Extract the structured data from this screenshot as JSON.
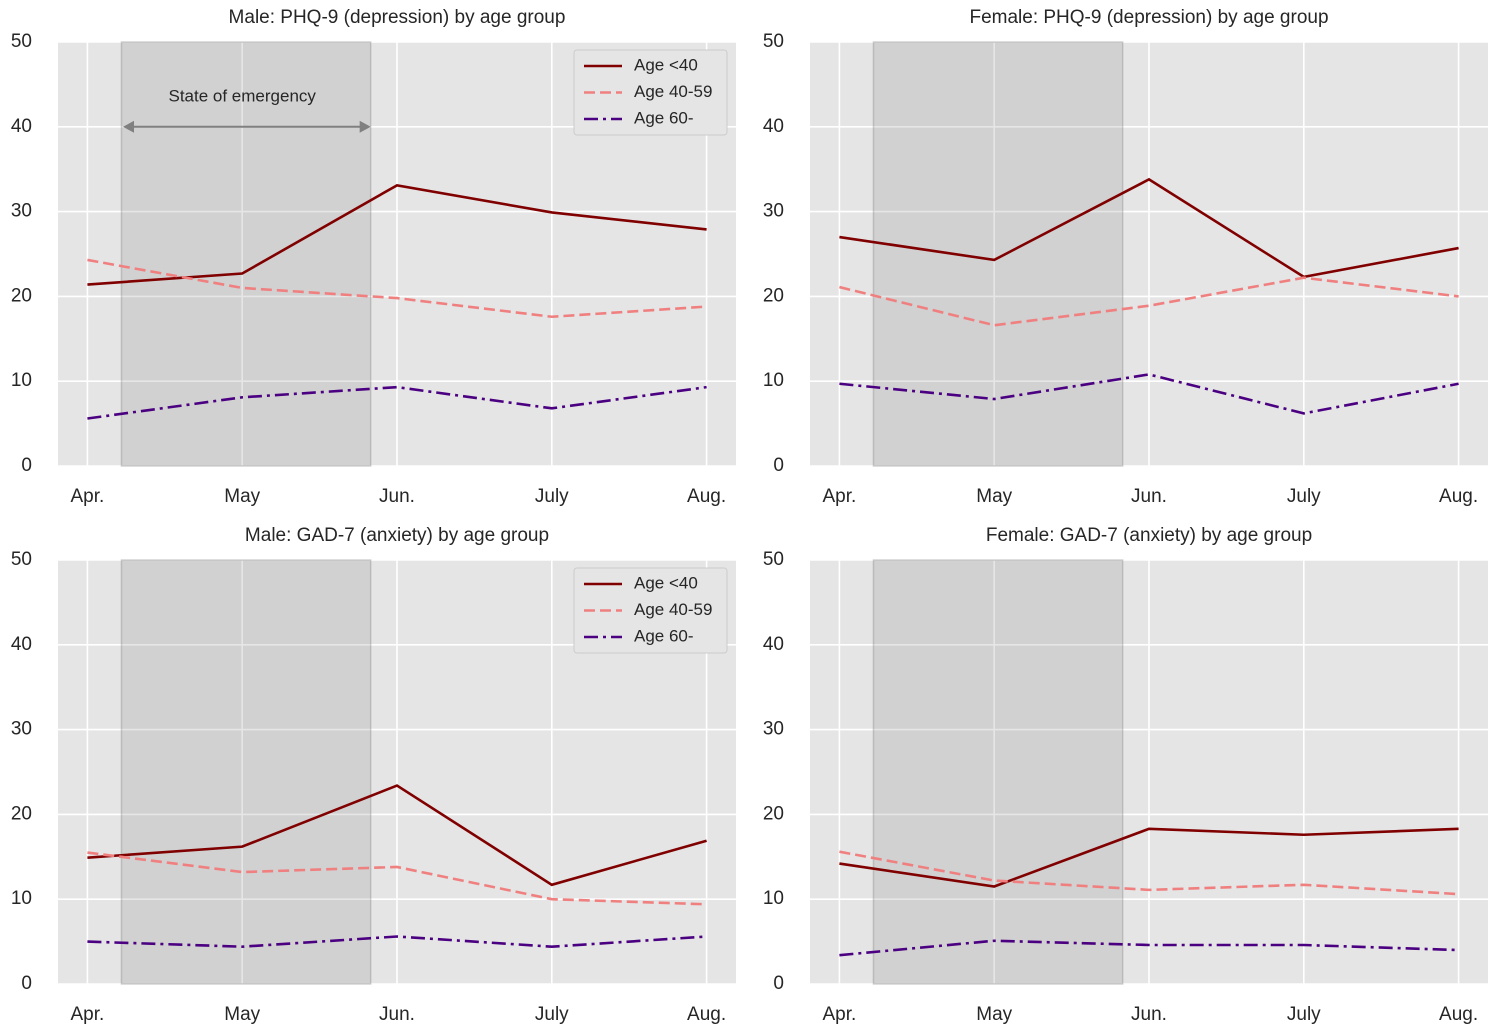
{
  "chart_data": [
    {
      "type": "line",
      "title": "Male: PHQ-9 (depression) by age group",
      "categories": [
        "Apr.",
        "May",
        "Jun.",
        "July",
        "Aug."
      ],
      "xlim": [
        -0.19,
        4.19
      ],
      "ylim": [
        0,
        50
      ],
      "yticks": [
        0,
        10,
        20,
        30,
        40,
        50
      ],
      "grid": true,
      "legend": "upper right",
      "shaded_span": [
        0.22,
        1.83
      ],
      "annotation": {
        "text": "State of emergency",
        "x": 1.0,
        "y": 43.5,
        "arrow_from": 0.23,
        "arrow_to": 1.83,
        "arrow_y": 40
      },
      "series": [
        {
          "name": "Age <40",
          "color": "#800000",
          "linestyle": "solid",
          "values": [
            21.4,
            22.7,
            33.1,
            29.9,
            27.9
          ]
        },
        {
          "name": "Age 40-59",
          "color": "#f08080",
          "linestyle": "dashed",
          "values": [
            24.3,
            21.0,
            19.8,
            17.6,
            18.8
          ]
        },
        {
          "name": "Age 60-",
          "color": "#4b0082",
          "linestyle": "dashdot",
          "values": [
            5.6,
            8.1,
            9.3,
            6.8,
            9.3
          ]
        }
      ]
    },
    {
      "type": "line",
      "title": "Female: PHQ-9 (depression) by age group",
      "categories": [
        "Apr.",
        "May",
        "Jun.",
        "July",
        "Aug."
      ],
      "xlim": [
        -0.19,
        4.19
      ],
      "ylim": [
        0,
        50
      ],
      "yticks": [
        0,
        10,
        20,
        30,
        40,
        50
      ],
      "grid": true,
      "shaded_span": [
        0.22,
        1.83
      ],
      "series": [
        {
          "name": "Age <40",
          "color": "#800000",
          "linestyle": "solid",
          "values": [
            27.0,
            24.3,
            33.8,
            22.3,
            25.7
          ]
        },
        {
          "name": "Age 40-59",
          "color": "#f08080",
          "linestyle": "dashed",
          "values": [
            21.1,
            16.6,
            18.9,
            22.2,
            20.0
          ]
        },
        {
          "name": "Age 60-",
          "color": "#4b0082",
          "linestyle": "dashdot",
          "values": [
            9.7,
            7.9,
            10.8,
            6.2,
            9.7
          ]
        }
      ]
    },
    {
      "type": "line",
      "title": "Male: GAD-7 (anxiety) by age group",
      "categories": [
        "Apr.",
        "May",
        "Jun.",
        "July",
        "Aug."
      ],
      "xlim": [
        -0.19,
        4.19
      ],
      "ylim": [
        0,
        50
      ],
      "yticks": [
        0,
        10,
        20,
        30,
        40,
        50
      ],
      "grid": true,
      "legend": "upper right",
      "shaded_span": [
        0.22,
        1.83
      ],
      "series": [
        {
          "name": "Age <40",
          "color": "#800000",
          "linestyle": "solid",
          "values": [
            14.9,
            16.2,
            23.4,
            11.7,
            16.9
          ]
        },
        {
          "name": "Age 40-59",
          "color": "#f08080",
          "linestyle": "dashed",
          "values": [
            15.5,
            13.2,
            13.8,
            10.0,
            9.4
          ]
        },
        {
          "name": "Age 60-",
          "color": "#4b0082",
          "linestyle": "dashdot",
          "values": [
            5.0,
            4.4,
            5.6,
            4.4,
            5.6
          ]
        }
      ]
    },
    {
      "type": "line",
      "title": "Female: GAD-7 (anxiety) by age group",
      "categories": [
        "Apr.",
        "May",
        "Jun.",
        "July",
        "Aug."
      ],
      "xlim": [
        -0.19,
        4.19
      ],
      "ylim": [
        0,
        50
      ],
      "yticks": [
        0,
        10,
        20,
        30,
        40,
        50
      ],
      "grid": true,
      "shaded_span": [
        0.22,
        1.83
      ],
      "series": [
        {
          "name": "Age <40",
          "color": "#800000",
          "linestyle": "solid",
          "values": [
            14.2,
            11.5,
            18.3,
            17.6,
            18.3
          ]
        },
        {
          "name": "Age 40-59",
          "color": "#f08080",
          "linestyle": "dashed",
          "values": [
            15.6,
            12.2,
            11.1,
            11.7,
            10.6
          ]
        },
        {
          "name": "Age 60-",
          "color": "#4b0082",
          "linestyle": "dashdot",
          "values": [
            3.4,
            5.1,
            4.6,
            4.6,
            4.0
          ]
        }
      ]
    }
  ]
}
